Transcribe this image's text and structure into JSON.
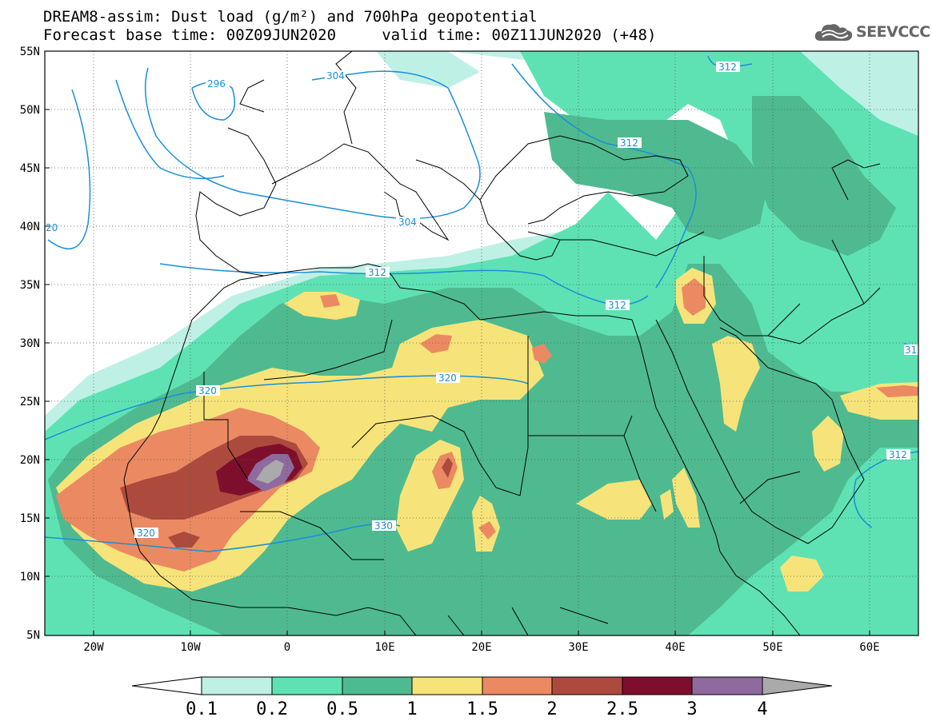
{
  "header": {
    "title_line1": "DREAM8-assim: Dust load (g/m²) and 700hPa geopotential",
    "title_line2": "Forecast base time: 00Z09JUN2020     valid time: 00Z11JUN2020 (+48)",
    "logo_text": "SEEVCCC"
  },
  "map": {
    "lat_labels": [
      "55N",
      "50N",
      "45N",
      "40N",
      "35N",
      "30N",
      "25N",
      "20N",
      "15N",
      "10N",
      "5N"
    ],
    "lon_labels": [
      "20W",
      "10W",
      "0",
      "10E",
      "20E",
      "30E",
      "40E",
      "50E",
      "60E"
    ],
    "contour_labels": [
      "296",
      "304",
      "312",
      "312",
      "312",
      "304",
      "312",
      "320",
      "320",
      "320",
      "330",
      "312",
      "31",
      "20"
    ],
    "colors": {
      "background_land": "#ffffff",
      "contour_line": "#1a8fd6",
      "coastline": "#000000"
    }
  },
  "colorbar": {
    "levels": [
      "0.1",
      "0.2",
      "0.5",
      "1",
      "1.5",
      "2",
      "2.5",
      "3",
      "4"
    ],
    "colors": [
      "#ffffff",
      "#bff0e6",
      "#5ee2b4",
      "#4fba90",
      "#f6e47a",
      "#eb8a62",
      "#ad4a3e",
      "#7e0f2c",
      "#8f6a9f",
      "#aaaaaa"
    ]
  }
}
